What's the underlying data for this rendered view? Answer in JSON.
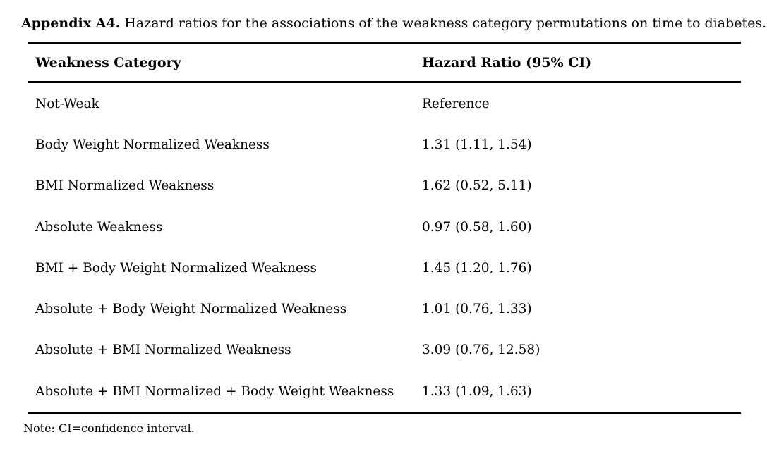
{
  "caption": {
    "label": "Appendix A4.",
    "text": " Hazard ratios for the associations of the weakness category permutations on time to diabetes."
  },
  "chart_data": {
    "type": "table",
    "title": "Appendix A4. Hazard ratios for the associations of the weakness category permutations on time to diabetes.",
    "columns": [
      "Weakness Category",
      "Hazard Ratio (95% CI)"
    ],
    "rows": [
      {
        "category": "Not-Weak",
        "hazard_ratio": "Reference"
      },
      {
        "category": "Body Weight Normalized Weakness",
        "hazard_ratio": "1.31 (1.11, 1.54)"
      },
      {
        "category": "BMI Normalized Weakness",
        "hazard_ratio": "1.62 (0.52, 5.11)"
      },
      {
        "category": "Absolute Weakness",
        "hazard_ratio": "0.97 (0.58, 1.60)"
      },
      {
        "category": "BMI + Body Weight Normalized Weakness",
        "hazard_ratio": "1.45 (1.20, 1.76)"
      },
      {
        "category": "Absolute + Body Weight Normalized Weakness",
        "hazard_ratio": "1.01 (0.76, 1.33)"
      },
      {
        "category": "Absolute + BMI Normalized Weakness",
        "hazard_ratio": "3.09 (0.76, 12.58)"
      },
      {
        "category": "Absolute + BMI Normalized + Body Weight Weakness",
        "hazard_ratio": "1.33 (1.09, 1.63)"
      }
    ]
  },
  "note": "Note: CI=confidence interval."
}
